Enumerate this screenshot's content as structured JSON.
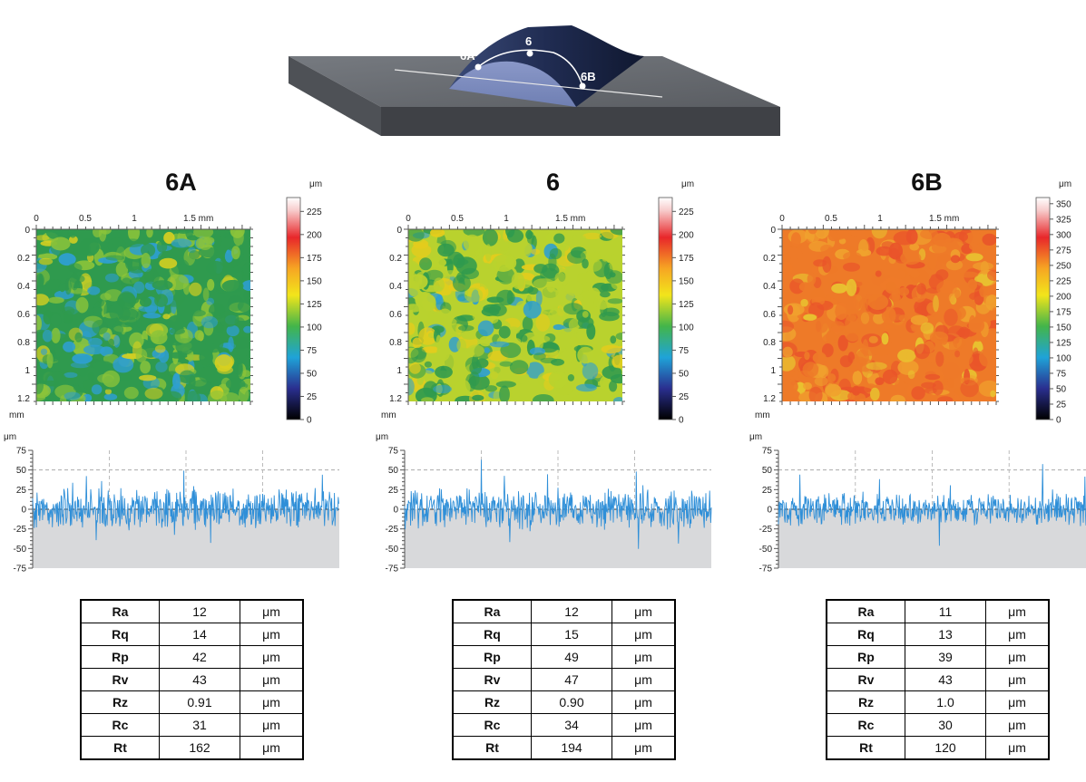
{
  "illustration": {
    "points": [
      "6A",
      "6",
      "6B"
    ]
  },
  "shared": {
    "unit_um": "μm",
    "unit_mm": "mm",
    "map_x_ticks": [
      "0",
      "0.5",
      "1",
      "1.5 mm"
    ],
    "map_y_ticks": [
      "0",
      "0.2",
      "0.4",
      "0.6",
      "0.8",
      "1",
      "1.2"
    ],
    "profile_y_ticks": [
      "75",
      "50",
      "25",
      "0",
      "-25",
      "-50",
      "-75"
    ]
  },
  "panels": [
    {
      "title": "6A",
      "colorbar_ticks": [
        "225",
        "200",
        "175",
        "150",
        "125",
        "100",
        "75",
        "50",
        "25",
        "0"
      ],
      "colorbar_max": 240,
      "map_dominant": "green",
      "roughness": [
        {
          "name": "Ra",
          "value": "12",
          "unit": "μm"
        },
        {
          "name": "Rq",
          "value": "14",
          "unit": "μm"
        },
        {
          "name": "Rp",
          "value": "42",
          "unit": "μm"
        },
        {
          "name": "Rv",
          "value": "43",
          "unit": "μm"
        },
        {
          "name": "Rz",
          "value": "0.91",
          "unit": "μm"
        },
        {
          "name": "Rc",
          "value": "31",
          "unit": "μm"
        },
        {
          "name": "Rt",
          "value": "162",
          "unit": "μm"
        }
      ]
    },
    {
      "title": "6",
      "colorbar_ticks": [
        "225",
        "200",
        "175",
        "150",
        "125",
        "100",
        "75",
        "50",
        "25",
        "0"
      ],
      "colorbar_max": 240,
      "map_dominant": "yellow-green",
      "roughness": [
        {
          "name": "Ra",
          "value": "12",
          "unit": "μm"
        },
        {
          "name": "Rq",
          "value": "15",
          "unit": "μm"
        },
        {
          "name": "Rp",
          "value": "49",
          "unit": "μm"
        },
        {
          "name": "Rv",
          "value": "47",
          "unit": "μm"
        },
        {
          "name": "Rz",
          "value": "0.90",
          "unit": "μm"
        },
        {
          "name": "Rc",
          "value": "34",
          "unit": "μm"
        },
        {
          "name": "Rt",
          "value": "194",
          "unit": "μm"
        }
      ]
    },
    {
      "title": "6B",
      "colorbar_ticks": [
        "350",
        "325",
        "300",
        "275",
        "250",
        "225",
        "200",
        "175",
        "150",
        "125",
        "100",
        "75",
        "50",
        "25",
        "0"
      ],
      "colorbar_max": 360,
      "map_dominant": "orange",
      "roughness": [
        {
          "name": "Ra",
          "value": "11",
          "unit": "μm"
        },
        {
          "name": "Rq",
          "value": "13",
          "unit": "μm"
        },
        {
          "name": "Rp",
          "value": "39",
          "unit": "μm"
        },
        {
          "name": "Rv",
          "value": "43",
          "unit": "μm"
        },
        {
          "name": "Rz",
          "value": "1.0",
          "unit": "μm"
        },
        {
          "name": "Rc",
          "value": "30",
          "unit": "μm"
        },
        {
          "name": "Rt",
          "value": "120",
          "unit": "μm"
        }
      ]
    }
  ]
}
